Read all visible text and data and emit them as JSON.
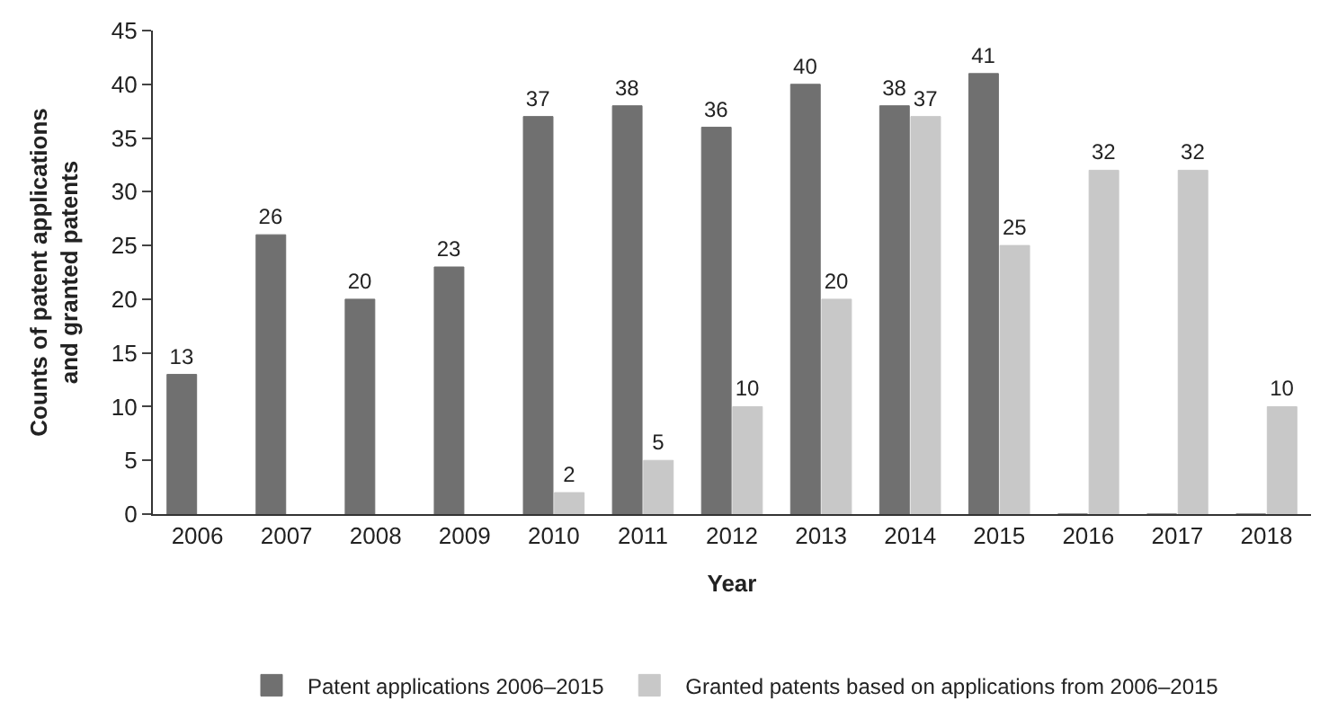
{
  "chart_data": {
    "type": "bar",
    "xlabel": "Year",
    "ylabel": "Counts of patent applications\nand granted patents",
    "categories": [
      "2006",
      "2007",
      "2008",
      "2009",
      "2010",
      "2011",
      "2012",
      "2013",
      "2014",
      "2015",
      "2016",
      "2017",
      "2018"
    ],
    "series": [
      {
        "name": "Patent applications 2006–2015",
        "color": "#707070",
        "values": [
          13,
          26,
          20,
          23,
          37,
          38,
          36,
          40,
          38,
          41,
          0,
          0,
          0
        ],
        "value_labels": [
          "13",
          "26",
          "20",
          "23",
          "37",
          "38",
          "36",
          "40",
          "38",
          "41",
          null,
          null,
          null
        ]
      },
      {
        "name": "Granted patents based on applications from 2006–2015",
        "color": "#c8c8c8",
        "values": [
          null,
          null,
          null,
          null,
          2,
          5,
          10,
          20,
          37,
          25,
          32,
          32,
          10
        ],
        "value_labels": [
          null,
          null,
          null,
          null,
          "2",
          "5",
          "10",
          "20",
          "37",
          "25",
          "32",
          "32",
          "10"
        ]
      }
    ],
    "ylim": [
      0,
      45
    ],
    "yticks": [
      0,
      5,
      10,
      15,
      20,
      25,
      30,
      35,
      40,
      45
    ],
    "legend": "bottom"
  }
}
